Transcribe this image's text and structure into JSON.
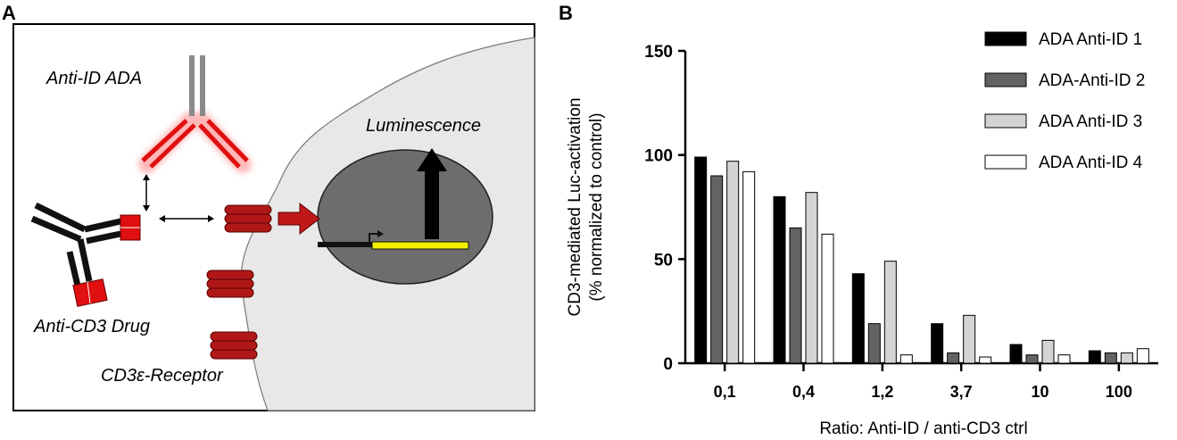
{
  "panels": {
    "a_label": "A",
    "b_label": "B"
  },
  "diagram": {
    "anti_id_ada_label": "Anti-ID ADA",
    "luminescence_label": "Luminescence",
    "anti_cd3_drug_label": "Anti-CD3 Drug",
    "receptor_label": "CD3ε-Receptor"
  },
  "colors": {
    "series_1": "#000000",
    "series_2": "#636363",
    "series_3": "#d4d4d4",
    "series_4": "#ffffff",
    "cell": "#e8e8e8",
    "nucleus": "#6d6d6d",
    "receptor": "#b01818",
    "ada_arm": "#e01010",
    "reporter": "#f2ee00"
  },
  "chart_data": {
    "type": "bar",
    "title": "",
    "xlabel": "Ratio: Anti-ID / anti-CD3 ctrl",
    "ylabel_line1": "CD3-mediated Luc-activation",
    "ylabel_line2": "(% normalized to control)",
    "ylim": [
      0,
      150
    ],
    "yticks": [
      "0",
      "50",
      "100",
      "150"
    ],
    "categories": [
      "0,1",
      "0,4",
      "1,2",
      "3,7",
      "10",
      "100"
    ],
    "legend_position": "top-right",
    "grid": false,
    "series": [
      {
        "name": "ADA Anti-ID 1",
        "values": [
          99,
          80,
          43,
          19,
          9,
          6
        ]
      },
      {
        "name": "ADA-Anti-ID 2",
        "values": [
          90,
          65,
          19,
          5,
          4,
          5
        ]
      },
      {
        "name": "ADA Anti-ID 3",
        "values": [
          97,
          82,
          49,
          23,
          11,
          5
        ]
      },
      {
        "name": "ADA Anti-ID 4",
        "values": [
          92,
          62,
          4,
          3,
          4,
          7
        ]
      }
    ]
  }
}
